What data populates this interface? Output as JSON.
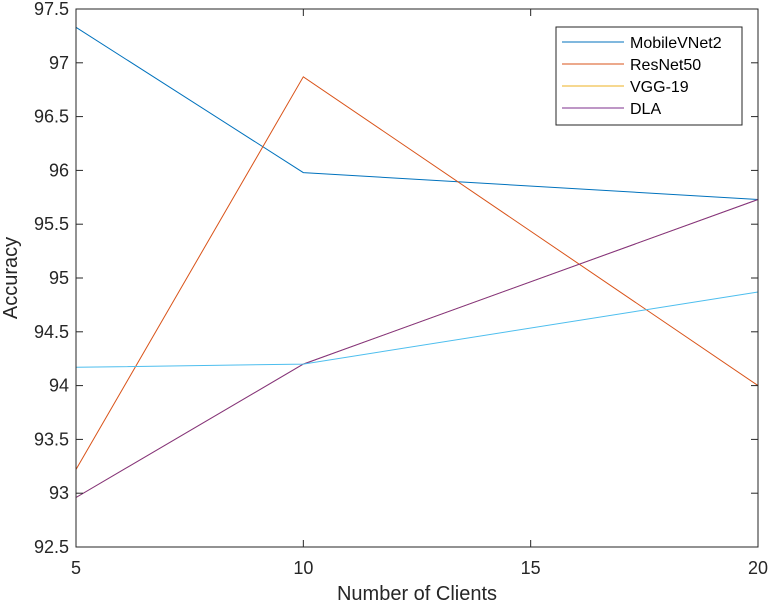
{
  "chart_data": {
    "type": "line",
    "xlabel": "Number of Clients",
    "ylabel": "Accuracy",
    "xlim": [
      5,
      20
    ],
    "ylim": [
      92.5,
      97.5
    ],
    "xticks": [
      5,
      10,
      15,
      20
    ],
    "yticks": [
      92.5,
      93,
      93.5,
      94,
      94.5,
      95,
      95.5,
      96,
      96.5,
      97,
      97.5
    ],
    "xtick_labels": [
      "5",
      "10",
      "15",
      "20"
    ],
    "ytick_labels": [
      "92.5",
      "93",
      "93.5",
      "94",
      "94.5",
      "95",
      "95.5",
      "96",
      "96.5",
      "97",
      "97.5"
    ],
    "grid": false,
    "legend_position": "top-right",
    "legend": [
      "MobileVNet2",
      "ResNet50",
      "VGG-19",
      "DLA"
    ],
    "series": [
      {
        "name": "MobileVNet2",
        "color": "#0072BD",
        "x": [
          5,
          10,
          20
        ],
        "y": [
          97.33,
          95.98,
          95.73
        ]
      },
      {
        "name": "ResNet50",
        "color": "#D95319",
        "x": [
          5,
          10,
          20
        ],
        "y": [
          93.22,
          96.87,
          94.0
        ]
      },
      {
        "name": "VGG-19",
        "color": "#EDB120",
        "x": [
          5,
          10,
          20
        ],
        "y": [
          92.96,
          94.2,
          95.73
        ]
      },
      {
        "name": "DLA",
        "color": "#7E2F8E",
        "x": [
          5,
          10,
          20
        ],
        "y": [
          92.96,
          94.2,
          95.73
        ]
      },
      {
        "color": "#4DBEEE",
        "x": [
          5,
          10,
          20
        ],
        "y": [
          94.17,
          94.2,
          94.87
        ]
      }
    ]
  }
}
